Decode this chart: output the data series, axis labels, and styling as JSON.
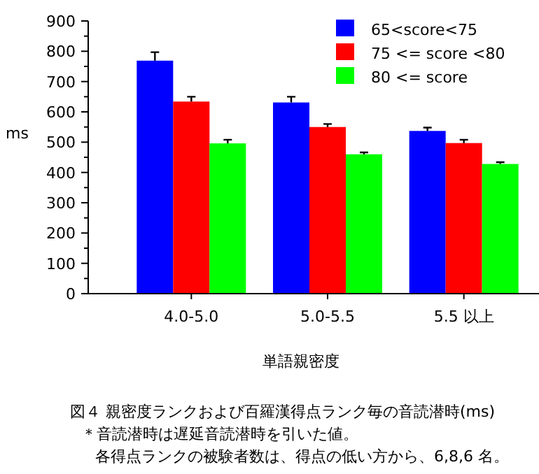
{
  "chart_data": {
    "type": "bar",
    "xlabel": "単語親密度",
    "ylabel": "ms",
    "categories": [
      "4.0-5.0",
      "5.0-5.5",
      "5.5 以上"
    ],
    "series": [
      {
        "name": "65<score<75",
        "color": "#0000ff",
        "values": [
          769,
          631,
          537
        ],
        "errors": [
          28,
          19,
          11
        ]
      },
      {
        "name": "75 <= score <80",
        "color": "#ff0000",
        "values": [
          634,
          550,
          497
        ],
        "errors": [
          16,
          10,
          11
        ]
      },
      {
        "name": "80 <= score",
        "color": "#00ff00",
        "values": [
          496,
          460,
          428
        ],
        "errors": [
          12,
          6,
          6
        ]
      }
    ],
    "ylim": [
      0,
      900
    ],
    "yticks": [
      0,
      100,
      200,
      300,
      400,
      500,
      600,
      700,
      800,
      900
    ],
    "legend": "top right",
    "grid": false,
    "annotations": [
      "図４ 親密度ランクおよび百羅漢得点ランク毎の音読潜時(ms)",
      "＊音読潜時は遅延音読潜時を引いた値。",
      "各得点ランクの被験者数は、得点の低い方から、6,8,6 名。"
    ]
  }
}
